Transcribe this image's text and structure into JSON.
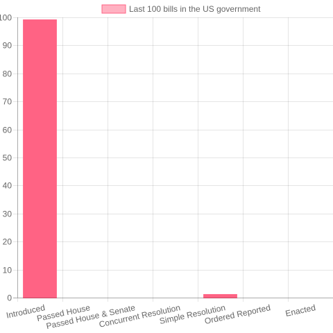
{
  "chart_data": {
    "type": "bar",
    "categories": [
      "Introduced",
      "Passed House",
      "Passed House & Senate",
      "Concurrent Resolution",
      "Simple Resolution",
      "Ordered Reported",
      "Enacted"
    ],
    "series": [
      {
        "name": "Last 100 bills in the US government",
        "values": [
          99,
          0,
          0,
          0,
          1,
          0,
          0
        ],
        "color": "#ff6384"
      }
    ],
    "ylim": [
      0,
      100
    ],
    "y_ticks": [
      0,
      10,
      20,
      30,
      40,
      50,
      60,
      70,
      80,
      90,
      100
    ],
    "grid": true,
    "legend_position": "top"
  }
}
